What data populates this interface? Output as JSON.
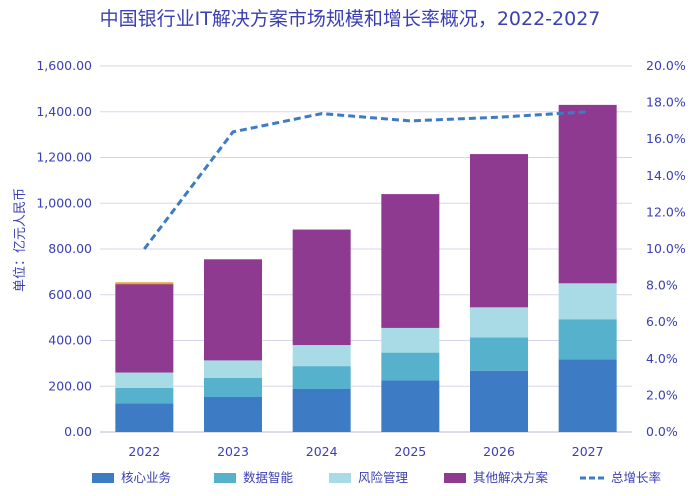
{
  "chart_data": {
    "type": "bar",
    "stacked": true,
    "title": "中国银行业IT解决方案市场规模和增长率概况，2022-2027",
    "ylabel": "单位：亿元人民币",
    "categories": [
      "2022",
      "2023",
      "2024",
      "2025",
      "2026",
      "2027"
    ],
    "ylim": [
      0,
      1600
    ],
    "y_ticks": [
      "0.00",
      "200.00",
      "400.00",
      "600.00",
      "800.00",
      "1,000.00",
      "1,200.00",
      "1,400.00",
      "1,600.00"
    ],
    "y2lim": [
      0,
      20
    ],
    "y2_ticks": [
      "0.0%",
      "2.0%",
      "4.0%",
      "6.0%",
      "8.0%",
      "10.0%",
      "12.0%",
      "14.0%",
      "16.0%",
      "18.0%",
      "20.0%"
    ],
    "series": [
      {
        "name": "核心业务",
        "color": "#3d7cc4",
        "values": [
          125,
          153,
          188,
          225,
          268,
          318
        ]
      },
      {
        "name": "数据智能",
        "color": "#56b1cc",
        "values": [
          68,
          83,
          100,
          122,
          145,
          175
        ]
      },
      {
        "name": "风险管理",
        "color": "#a8dbe6",
        "values": [
          67,
          77,
          92,
          108,
          132,
          157
        ]
      },
      {
        "name": "其他解决方案",
        "color": "#8e3a91",
        "values": [
          388,
          442,
          505,
          585,
          670,
          780
        ]
      }
    ],
    "line": {
      "name": "总增长率",
      "color": "#3d7cc4",
      "axis": "right",
      "values": [
        10.0,
        16.4,
        17.4,
        17.0,
        17.2,
        17.5
      ]
    },
    "top_marker_color": "#e6a53a",
    "grid": true,
    "legend": "bottom"
  }
}
